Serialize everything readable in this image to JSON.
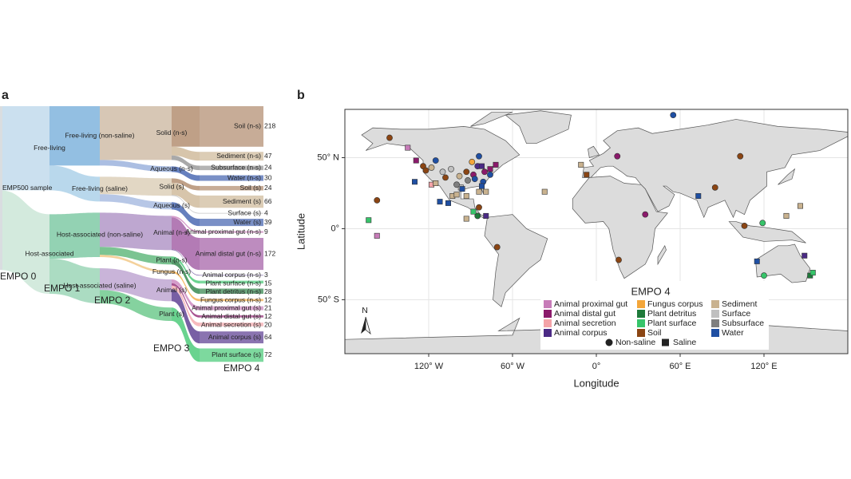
{
  "chart_data": [
    {
      "type": "sankey",
      "panel": "a",
      "levels": [
        "EMPO 0",
        "EMPO 1",
        "EMPO 2",
        "EMPO 3",
        "EMPO 4"
      ],
      "root": {
        "label": "EMP500 sample",
        "color": "#d9dde0",
        "children": [
          {
            "label": "Free-living",
            "color": "#b9d6ea",
            "children": [
              {
                "label": "Free-living (non-saline)",
                "color": "#6faad8",
                "children": [
                  {
                    "label": "Solid (n-s)",
                    "color": "#c9b49c",
                    "children": [
                      {
                        "label": "Soil (n-s)",
                        "value": 218,
                        "color": "#a9805f"
                      },
                      {
                        "label": "Sediment (n-s)",
                        "value": 47,
                        "color": "#c9b28f"
                      },
                      {
                        "label": "Subsurface (n-s)",
                        "value": 24,
                        "color": "#8c8c8c"
                      }
                    ]
                  },
                  {
                    "label": "Aqueous (n-s)",
                    "color": "#8fa8d8",
                    "children": [
                      {
                        "label": "Water (n-s)",
                        "value": 30,
                        "color": "#3355a8"
                      }
                    ]
                  }
                ]
              },
              {
                "label": "Free-living (saline)",
                "color": "#a2cbe6",
                "children": [
                  {
                    "label": "Solid (s)",
                    "color": "#d8c9b0",
                    "children": [
                      {
                        "label": "Soil (s)",
                        "value": 24,
                        "color": "#a9805f"
                      },
                      {
                        "label": "Sediment (s)",
                        "value": 66,
                        "color": "#c9b28f"
                      },
                      {
                        "label": "Surface (s)",
                        "value": 4,
                        "color": "#b8b8b8"
                      }
                    ]
                  },
                  {
                    "label": "Aqueous (s)",
                    "color": "#9fb4de",
                    "children": [
                      {
                        "label": "Water (s)",
                        "value": 39,
                        "color": "#3355a8"
                      }
                    ]
                  }
                ]
              }
            ]
          },
          {
            "label": "Host-associated",
            "color": "#c4e3d2",
            "children": [
              {
                "label": "Host-associated (non-saline)",
                "color": "#6fc39a",
                "children": [
                  {
                    "label": "Animal (n-s)",
                    "color": "#a889c0",
                    "children": [
                      {
                        "label": "Animal proximal gut (n-s)",
                        "value": 9,
                        "color": "#c77bb8"
                      },
                      {
                        "label": "Animal distal gut (n-s)",
                        "value": 172,
                        "color": "#9a4f9c"
                      },
                      {
                        "label": "Animal corpus (n-s)",
                        "value": 3,
                        "color": "#4b2a85"
                      }
                    ]
                  },
                  {
                    "label": "Plant (n-s)",
                    "color": "#4fb06e",
                    "children": [
                      {
                        "label": "Plant surface (n-s)",
                        "value": 15,
                        "color": "#37c46a"
                      },
                      {
                        "label": "Plant detritus (n-s)",
                        "value": 28,
                        "color": "#1e7a3a"
                      }
                    ]
                  },
                  {
                    "label": "Fungus (n-s)",
                    "color": "#f0c27a",
                    "children": [
                      {
                        "label": "Fungus corpus (n-s)",
                        "value": 12,
                        "color": "#f3a63a"
                      }
                    ]
                  }
                ]
              },
              {
                "label": "Host-associated (saline)",
                "color": "#8fd0ae",
                "children": [
                  {
                    "label": "Animal (s)",
                    "color": "#b79bcc",
                    "children": [
                      {
                        "label": "Animal proximal gut (s)",
                        "value": 21,
                        "color": "#c77bb8"
                      },
                      {
                        "label": "Animal distal gut (s)",
                        "value": 12,
                        "color": "#8b1a6b"
                      },
                      {
                        "label": "Animal secretion (s)",
                        "value": 20,
                        "color": "#f4a3a8"
                      },
                      {
                        "label": "Animal corpus (s)",
                        "value": 64,
                        "color": "#4b2a85"
                      }
                    ]
                  },
                  {
                    "label": "Plant (s)",
                    "color": "#5cc37f",
                    "children": [
                      {
                        "label": "Plant surface (s)",
                        "value": 72,
                        "color": "#37c46a"
                      }
                    ]
                  }
                ]
              }
            ]
          }
        ]
      }
    },
    {
      "type": "scatter",
      "panel": "b",
      "xlabel": "Longitude",
      "ylabel": "Latitude",
      "xlim": [
        -180,
        180
      ],
      "ylim": [
        -88,
        84
      ],
      "xticks": [
        {
          "value": -120,
          "label": "120° W"
        },
        {
          "value": -60,
          "label": "60° W"
        },
        {
          "value": 0,
          "label": "0°"
        },
        {
          "value": 60,
          "label": "60° E"
        },
        {
          "value": 120,
          "label": "120° E"
        }
      ],
      "yticks": [
        {
          "value": 50,
          "label": "50° N"
        },
        {
          "value": 0,
          "label": "0°"
        },
        {
          "value": -50,
          "label": "50° S"
        }
      ],
      "grid": true,
      "legend_title": "EMPO 4",
      "north_label": "N",
      "shape_labels": {
        "non_saline": "Non-saline",
        "saline": "Saline"
      },
      "series": [
        {
          "name": "Animal proximal gut",
          "color": "#c77bb8",
          "non_saline": {
            "x": [],
            "y": []
          },
          "saline": {
            "x": [
              -135,
              -157
            ],
            "y": [
              57,
              -5
            ]
          }
        },
        {
          "name": "Animal distal gut",
          "color": "#8b1a6b",
          "non_saline": {
            "x": [
              15,
              -88,
              -80,
              35
            ],
            "y": [
              51,
              38,
              40,
              10
            ]
          },
          "saline": {
            "x": [
              -129,
              -76,
              -72
            ],
            "y": [
              48,
              42,
              45
            ]
          }
        },
        {
          "name": "Animal secretion",
          "color": "#f4a3a8",
          "non_saline": {
            "x": [],
            "y": []
          },
          "saline": {
            "x": [
              -118
            ],
            "y": [
              31
            ]
          }
        },
        {
          "name": "Animal corpus",
          "color": "#4b2a85",
          "non_saline": {
            "x": [
              -85
            ],
            "y": [
              44
            ]
          },
          "saline": {
            "x": [
              -79,
              149,
              -82
            ],
            "y": [
              9,
              -19,
              44
            ]
          }
        },
        {
          "name": "Fungus corpus",
          "color": "#f3a63a",
          "non_saline": {
            "x": [
              -89
            ],
            "y": [
              47
            ]
          },
          "saline": {
            "x": [],
            "y": []
          }
        },
        {
          "name": "Plant detritus",
          "color": "#1e7a3a",
          "non_saline": {
            "x": [
              -85
            ],
            "y": [
              9
            ]
          },
          "saline": {
            "x": [
              153
            ],
            "y": [
              -33
            ]
          }
        },
        {
          "name": "Plant surface",
          "color": "#37c46a",
          "non_saline": {
            "x": [
              119,
              120
            ],
            "y": [
              4,
              -33
            ]
          },
          "saline": {
            "x": [
              -163,
              -88,
              155
            ],
            "y": [
              6,
              12,
              -31
            ]
          }
        },
        {
          "name": "Soil",
          "color": "#8b4513",
          "non_saline": {
            "x": [
              -148,
              -124,
              -122,
              -93,
              -84,
              -157,
              -71,
              16,
              103,
              85,
              106,
              -108
            ],
            "y": [
              64,
              44,
              41,
              40,
              15,
              20,
              -13,
              -22,
              51,
              29,
              2,
              36
            ]
          },
          "saline": {
            "x": [
              -7
            ],
            "y": [
              38
            ]
          }
        },
        {
          "name": "Sediment",
          "color": "#c9b28f",
          "non_saline": {
            "x": [
              -118,
              -98
            ],
            "y": [
              43,
              37
            ]
          },
          "saline": {
            "x": [
              -115,
              -103,
              -100,
              -93,
              -84,
              -79,
              -93,
              -37,
              -11,
              136,
              146
            ],
            "y": [
              32,
              23,
              24,
              23,
              26,
              26,
              7,
              26,
              45,
              9,
              16
            ]
          }
        },
        {
          "name": "Surface",
          "color": "#c0c0c0",
          "non_saline": {
            "x": [
              -110,
              -104
            ],
            "y": [
              40,
              42
            ]
          },
          "saline": {
            "x": [
              -97
            ],
            "y": [
              29
            ]
          }
        },
        {
          "name": "Subsurface",
          "color": "#7f7f7f",
          "non_saline": {
            "x": [
              -100,
              -92
            ],
            "y": [
              31,
              34
            ]
          },
          "saline": {
            "x": [],
            "y": []
          }
        },
        {
          "name": "Water",
          "color": "#1f4fa3",
          "non_saline": {
            "x": [
              55,
              -115,
              -84,
              -87,
              -81,
              -76
            ],
            "y": [
              80,
              48,
              51,
              35,
              33,
              38
            ]
          },
          "saline": {
            "x": [
              -130,
              -112,
              -106,
              73,
              115,
              -96,
              -82
            ],
            "y": [
              33,
              19,
              18,
              23,
              -23,
              28,
              30
            ]
          }
        }
      ]
    }
  ]
}
